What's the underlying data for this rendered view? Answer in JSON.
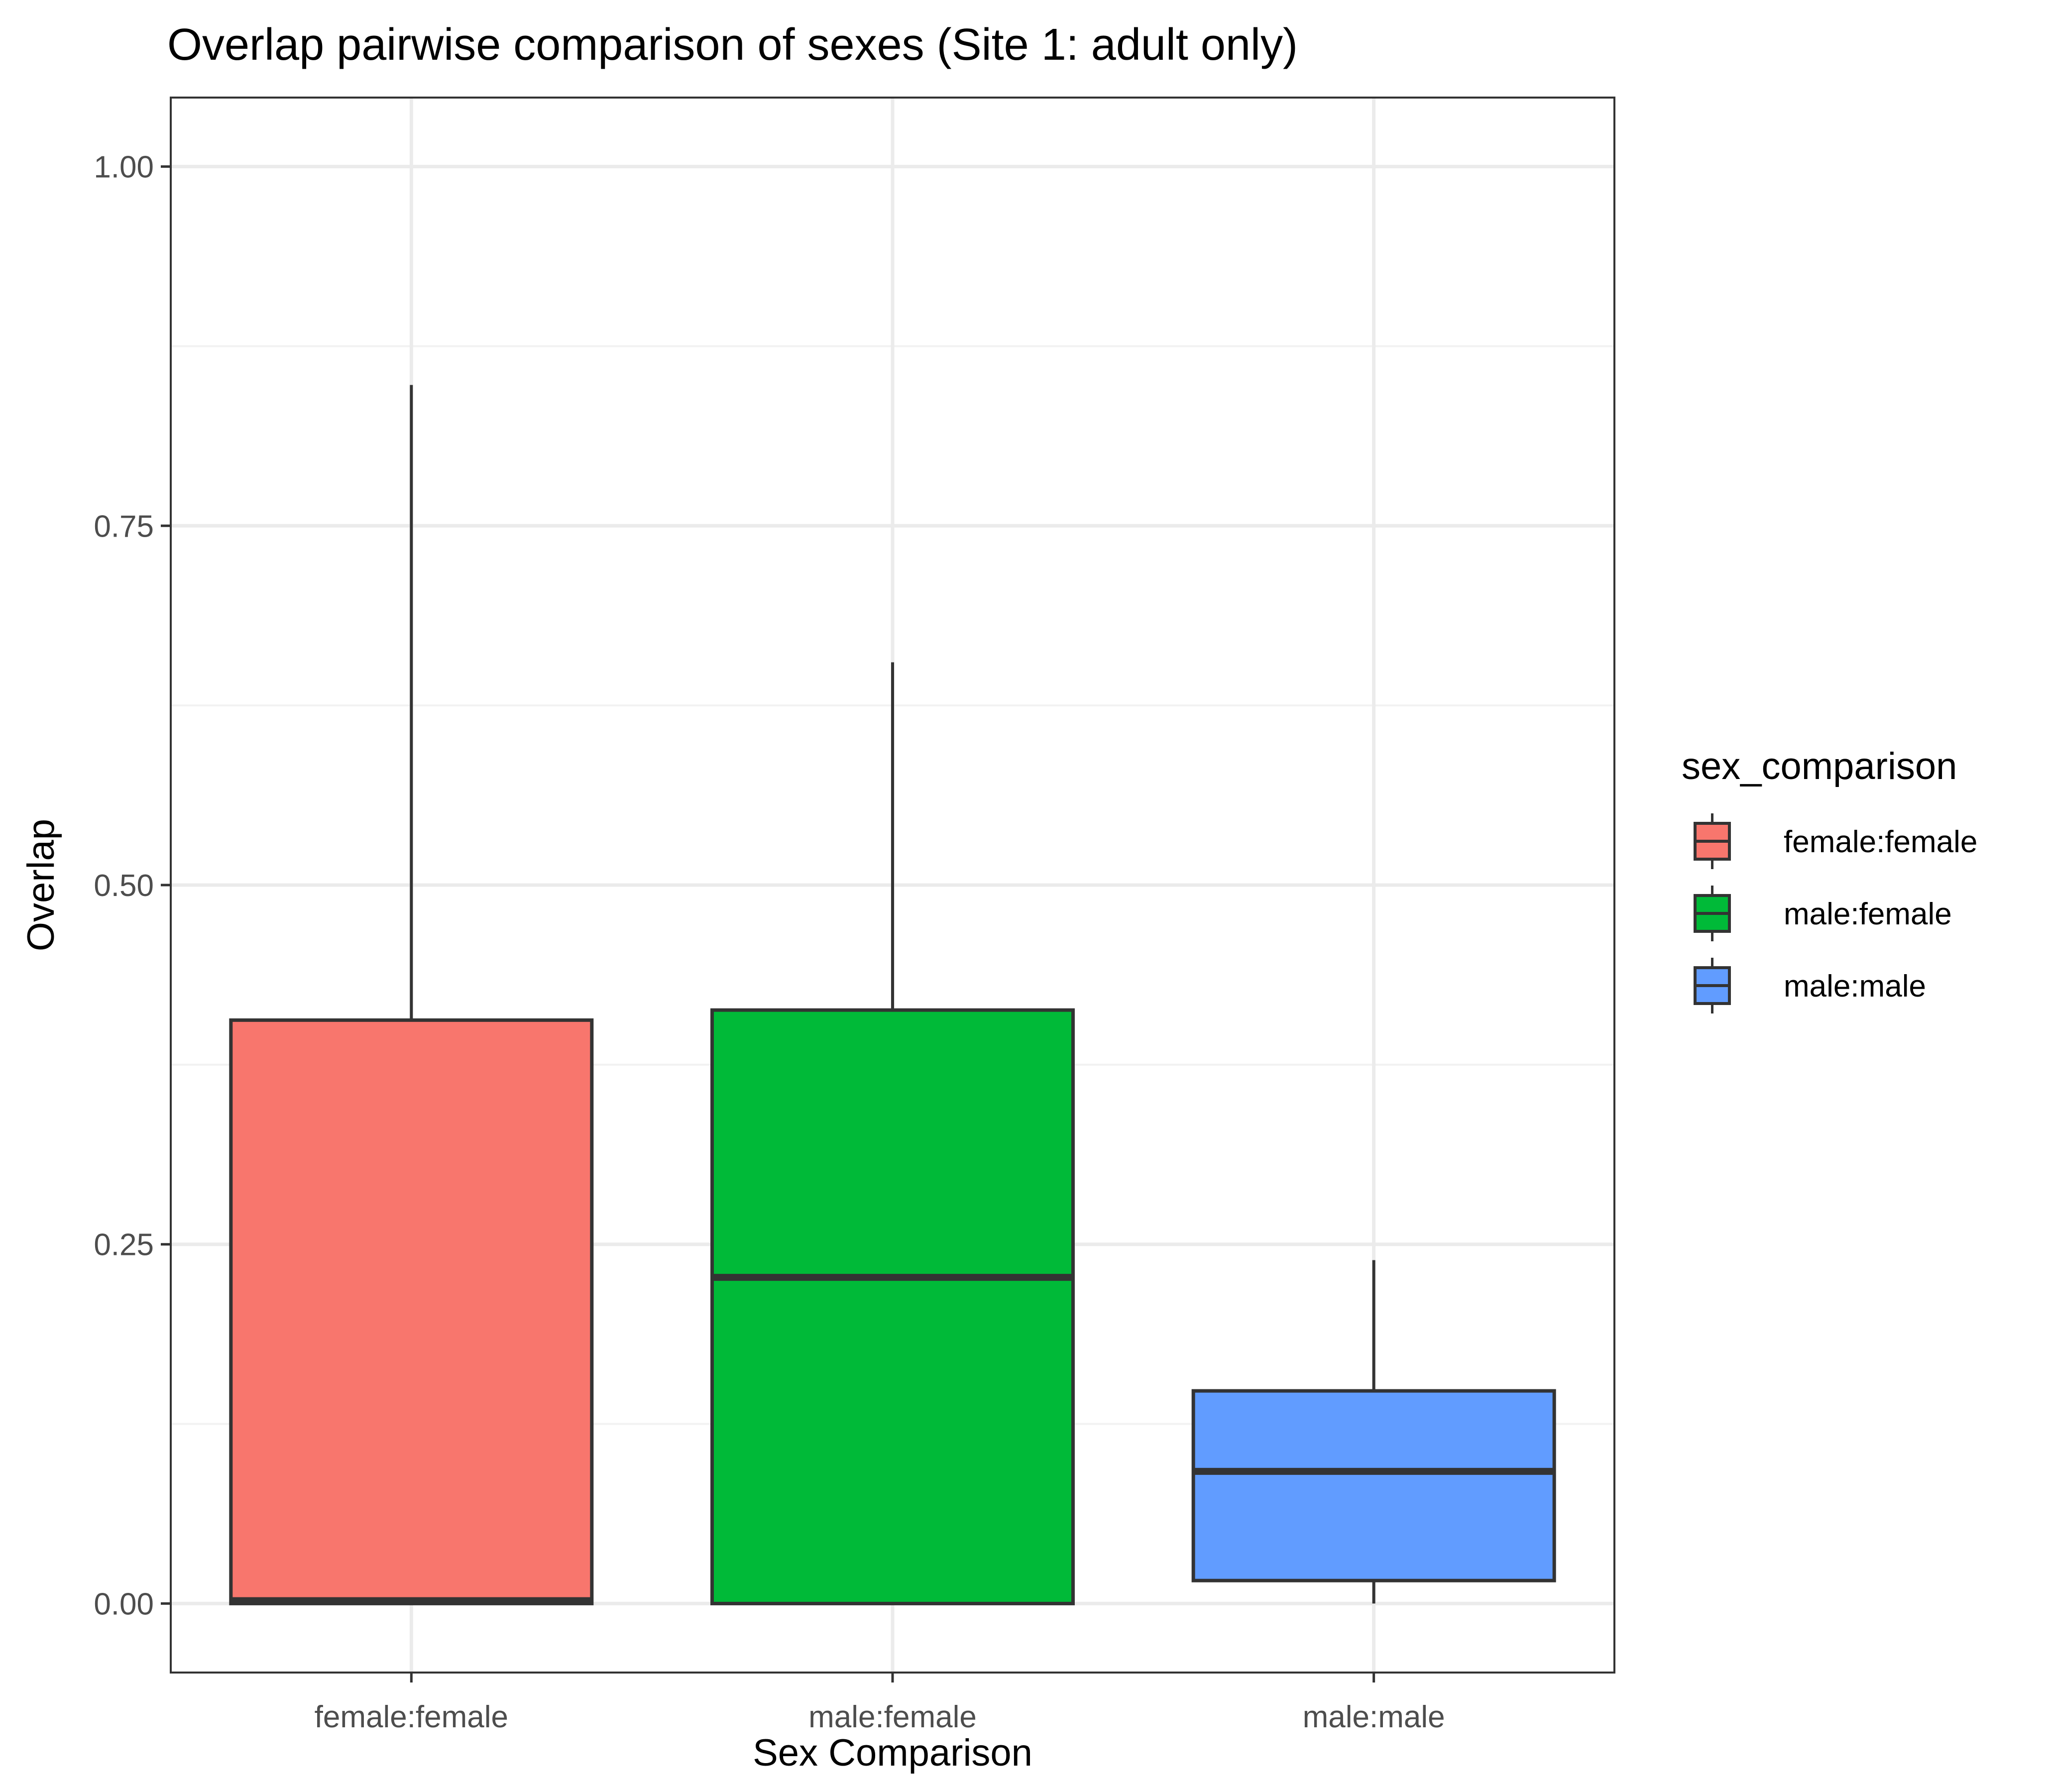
{
  "chart_data": {
    "type": "boxplot",
    "title": "Overlap pairwise comparison of sexes (Site 1: adult only)",
    "xlabel": "Sex Comparison",
    "ylabel": "Overlap",
    "ylim": [
      -0.048,
      1.048
    ],
    "yticks": [
      {
        "value": 0.0,
        "label": "0.00"
      },
      {
        "value": 0.25,
        "label": "0.25"
      },
      {
        "value": 0.5,
        "label": "0.50"
      },
      {
        "value": 0.75,
        "label": "0.75"
      },
      {
        "value": 1.0,
        "label": "1.00"
      }
    ],
    "y_minor_gridlines": [
      0.125,
      0.375,
      0.625,
      0.875
    ],
    "grid": true,
    "categories": [
      "female:female",
      "male:female",
      "male:male"
    ],
    "boxes": [
      {
        "category": "female:female",
        "whisker_low": 0.0,
        "q1": 0.0,
        "median": 0.002,
        "q3": 0.406,
        "whisker_high": 0.848,
        "color": "#F8766D"
      },
      {
        "category": "male:female",
        "whisker_low": 0.0,
        "q1": 0.0,
        "median": 0.227,
        "q3": 0.413,
        "whisker_high": 0.655,
        "color": "#00BA38"
      },
      {
        "category": "male:male",
        "whisker_low": 0.0,
        "q1": 0.016,
        "median": 0.092,
        "q3": 0.148,
        "whisker_high": 0.239,
        "color": "#619CFF"
      }
    ],
    "legend": {
      "title": "sex_comparison",
      "position": "right",
      "entries": [
        {
          "label": "female:female",
          "color": "#F8766D"
        },
        {
          "label": "male:female",
          "color": "#00BA38"
        },
        {
          "label": "male:male",
          "color": "#619CFF"
        }
      ]
    },
    "colors": {
      "panel_border": "#333333",
      "grid_major": "#ebebeb",
      "grid_minor": "#f2f2f2",
      "box_outline": "#333333"
    }
  }
}
